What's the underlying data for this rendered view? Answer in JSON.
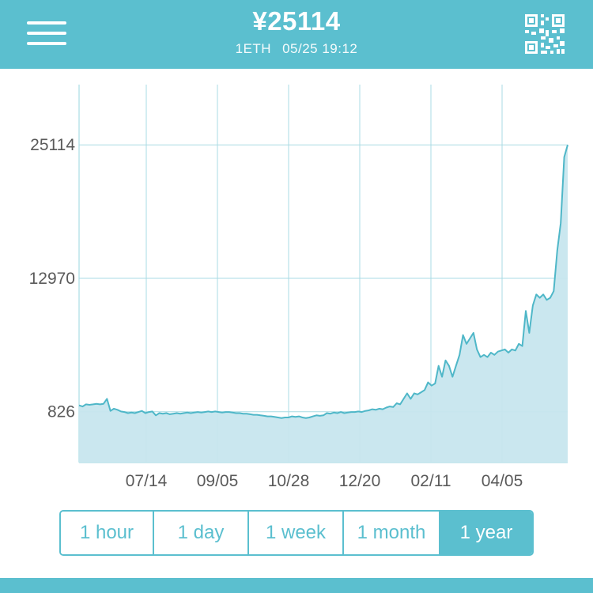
{
  "header": {
    "price": "¥25114",
    "unit": "1ETH",
    "timestamp": "05/25 19:12",
    "menu_icon": "hamburger-menu-icon",
    "qr_icon": "qr-code-icon"
  },
  "chart_data": {
    "type": "area",
    "title": "",
    "xlabel": "",
    "ylabel": "",
    "x_ticks": [
      "07/14",
      "09/05",
      "10/28",
      "12/20",
      "02/11",
      "04/05"
    ],
    "y_ticks": [
      826,
      12970,
      25114
    ],
    "ylim": [
      -3800,
      30600
    ],
    "grid": true,
    "series": [
      {
        "values": [
          1400,
          1300,
          1500,
          1450,
          1500,
          1550,
          1500,
          1550,
          2000,
          900,
          1100,
          1000,
          850,
          800,
          700,
          750,
          700,
          800,
          900,
          700,
          800,
          850,
          500,
          700,
          650,
          700,
          600,
          650,
          700,
          650,
          700,
          750,
          700,
          750,
          800,
          750,
          800,
          850,
          800,
          850,
          800,
          750,
          800,
          800,
          750,
          700,
          700,
          650,
          650,
          600,
          550,
          550,
          500,
          450,
          400,
          400,
          350,
          300,
          250,
          300,
          300,
          400,
          350,
          400,
          300,
          250,
          300,
          400,
          500,
          450,
          500,
          700,
          650,
          750,
          700,
          800,
          700,
          750,
          800,
          800,
          850,
          800,
          900,
          950,
          1050,
          1000,
          1100,
          1050,
          1200,
          1300,
          1250,
          1600,
          1500,
          2000,
          2500,
          2000,
          2500,
          2400,
          2600,
          2800,
          3500,
          3200,
          3400,
          5000,
          4000,
          5500,
          5000,
          4000,
          5000,
          6000,
          7800,
          7000,
          7500,
          8000,
          6500,
          5800,
          6000,
          5800,
          6200,
          6000,
          6300,
          6400,
          6500,
          6200,
          6500,
          6400,
          7000,
          6800,
          10000,
          8000,
          10500,
          11500,
          11200,
          11500,
          11000,
          11200,
          11800,
          15500,
          18000,
          24000,
          25114
        ]
      }
    ]
  },
  "range_tabs": [
    {
      "label": "1 hour",
      "active": false
    },
    {
      "label": "1 day",
      "active": false
    },
    {
      "label": "1 week",
      "active": false
    },
    {
      "label": "1 month",
      "active": false
    },
    {
      "label": "1 year",
      "active": true
    }
  ],
  "colors": {
    "accent": "#5bbfcf",
    "line": "#4fb7c8",
    "area": "#c7e6ee",
    "grid": "#a9dbe4",
    "axis_text": "#5a5a5a"
  }
}
